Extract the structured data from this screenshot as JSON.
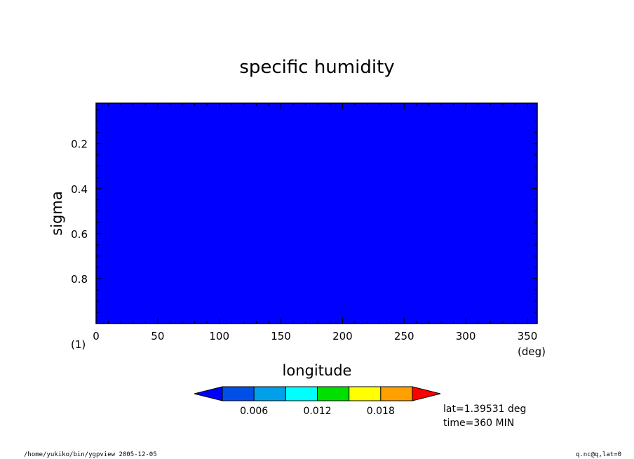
{
  "chart_data": {
    "type": "heatmap",
    "title": "specific humidity",
    "xlabel": "longitude",
    "ylabel": "sigma",
    "x_unit": "(deg)",
    "y_unit": "(1)",
    "xlim": [
      0,
      358
    ],
    "ylim": [
      0.02,
      1.0
    ],
    "y_inverted": true,
    "x_ticks": [
      0,
      50,
      100,
      150,
      200,
      250,
      300,
      350
    ],
    "y_ticks": [
      0.2,
      0.4,
      0.6,
      0.8
    ],
    "x_tick_labels": [
      "0",
      "50",
      "100",
      "150",
      "200",
      "250",
      "300",
      "350"
    ],
    "y_tick_labels": [
      "0.2",
      "0.4",
      "0.6",
      "0.8"
    ],
    "field_color": "#0000ff",
    "colorbar": {
      "colors": [
        "#0000ff",
        "#0050e8",
        "#00a0e8",
        "#00ffff",
        "#00e000",
        "#ffff00",
        "#ffa000",
        "#ff0000"
      ],
      "tick_values": [
        0.006,
        0.012,
        0.018
      ],
      "tick_labels": [
        "0.006",
        "0.012",
        "0.018"
      ]
    },
    "annotations": {
      "lat": "lat=1.39531 deg",
      "time": "time=360 MIN"
    },
    "footer_left": "/home/yukiko/bin/ygpview  2005-12-05",
    "footer_right": "q.nc@q,lat=0"
  }
}
